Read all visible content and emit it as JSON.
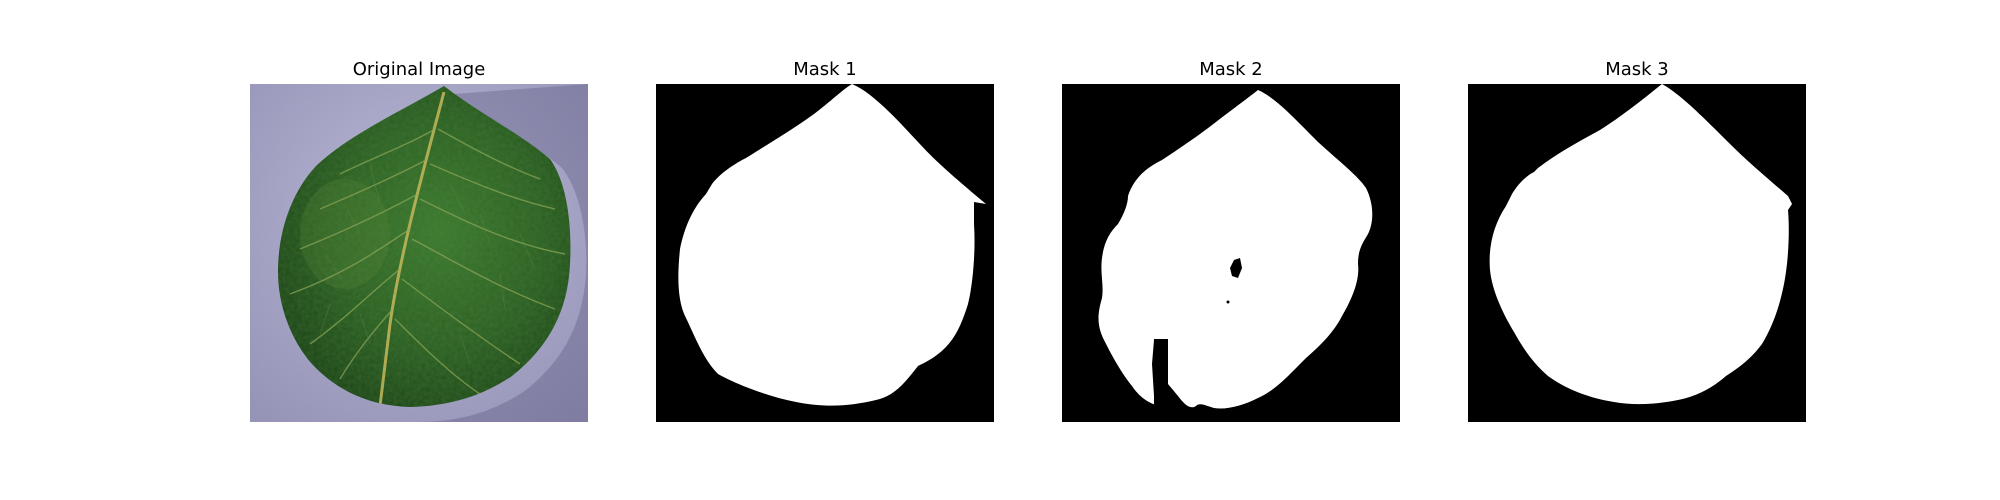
{
  "figure": {
    "panels": [
      {
        "title": "Original Image",
        "kind": "photo"
      },
      {
        "title": "Mask 1",
        "kind": "mask"
      },
      {
        "title": "Mask 2",
        "kind": "mask"
      },
      {
        "title": "Mask 3",
        "kind": "mask"
      }
    ],
    "colors": {
      "background": "#ffffff",
      "mask_background": "#000000",
      "mask_foreground": "#ffffff",
      "leaf_dark": "#1e4a18",
      "leaf_mid": "#2f6a24",
      "leaf_light": "#4f8a3a",
      "surface": "#a8a6c8"
    }
  }
}
